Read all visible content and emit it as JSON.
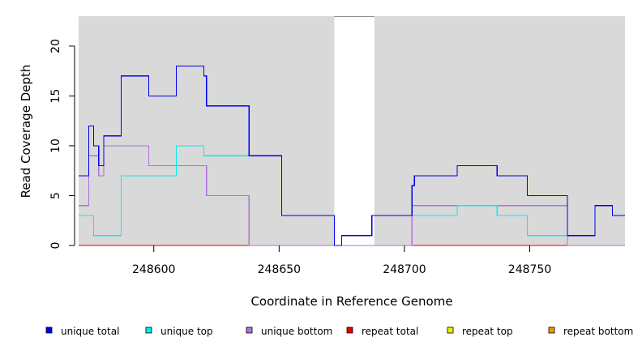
{
  "chart_data": {
    "type": "line",
    "step": true,
    "xlabel": "Coordinate in Reference Genome",
    "ylabel": "Read Coverage Depth",
    "xlim": [
      248570,
      248788
    ],
    "ylim": [
      0,
      23
    ],
    "x_ticks": [
      248600,
      248650,
      248700,
      248750
    ],
    "y_ticks": [
      0,
      5,
      10,
      15,
      20
    ],
    "background_color": "#d9d9d9",
    "gap_regions": [
      [
        248672,
        248688
      ]
    ],
    "series": [
      {
        "name": "unique total",
        "color": "#0000ee",
        "points": [
          [
            248570,
            7
          ],
          [
            248574,
            7
          ],
          [
            248574,
            12
          ],
          [
            248576,
            12
          ],
          [
            248576,
            10
          ],
          [
            248578,
            10
          ],
          [
            248578,
            8
          ],
          [
            248580,
            8
          ],
          [
            248580,
            11
          ],
          [
            248587,
            11
          ],
          [
            248587,
            17
          ],
          [
            248598,
            17
          ],
          [
            248598,
            15
          ],
          [
            248609,
            15
          ],
          [
            248609,
            18
          ],
          [
            248620,
            18
          ],
          [
            248620,
            17
          ],
          [
            248621,
            17
          ],
          [
            248621,
            14
          ],
          [
            248638,
            14
          ],
          [
            248638,
            9
          ],
          [
            248651,
            9
          ],
          [
            248651,
            3
          ],
          [
            248672,
            3
          ],
          [
            248672,
            0
          ],
          [
            248675,
            0
          ],
          [
            248675,
            1
          ],
          [
            248687,
            1
          ],
          [
            248687,
            3
          ],
          [
            248703,
            3
          ],
          [
            248703,
            6
          ],
          [
            248704,
            6
          ],
          [
            248704,
            7
          ],
          [
            248721,
            7
          ],
          [
            248721,
            8
          ],
          [
            248737,
            8
          ],
          [
            248737,
            7
          ],
          [
            248749,
            7
          ],
          [
            248749,
            5
          ],
          [
            248765,
            5
          ],
          [
            248765,
            1
          ],
          [
            248776,
            1
          ],
          [
            248776,
            4
          ],
          [
            248783,
            4
          ],
          [
            248783,
            3
          ],
          [
            248788,
            3
          ]
        ]
      },
      {
        "name": "unique top",
        "color": "#00eeee",
        "points": [
          [
            248570,
            3
          ],
          [
            248576,
            3
          ],
          [
            248576,
            1
          ],
          [
            248587,
            1
          ],
          [
            248587,
            7
          ],
          [
            248609,
            7
          ],
          [
            248609,
            10
          ],
          [
            248620,
            10
          ],
          [
            248620,
            9
          ],
          [
            248638,
            9
          ],
          [
            248651,
            9
          ],
          [
            248651,
            3
          ],
          [
            248672,
            3
          ],
          [
            248672,
            0
          ],
          [
            248675,
            0
          ],
          [
            248675,
            1
          ],
          [
            248687,
            1
          ],
          [
            248687,
            3
          ],
          [
            248703,
            3
          ],
          [
            248721,
            3
          ],
          [
            248721,
            4
          ],
          [
            248737,
            4
          ],
          [
            248737,
            3
          ],
          [
            248749,
            3
          ],
          [
            248749,
            1
          ],
          [
            248765,
            1
          ],
          [
            248776,
            1
          ],
          [
            248776,
            4
          ],
          [
            248783,
            4
          ],
          [
            248783,
            3
          ],
          [
            248788,
            3
          ]
        ]
      },
      {
        "name": "unique bottom",
        "color": "#b070e0",
        "points": [
          [
            248570,
            4
          ],
          [
            248574,
            4
          ],
          [
            248574,
            9
          ],
          [
            248578,
            9
          ],
          [
            248578,
            7
          ],
          [
            248580,
            7
          ],
          [
            248580,
            10
          ],
          [
            248598,
            10
          ],
          [
            248598,
            8
          ],
          [
            248621,
            8
          ],
          [
            248621,
            5
          ],
          [
            248638,
            5
          ],
          [
            248638,
            0
          ],
          [
            248703,
            0
          ],
          [
            248703,
            4
          ],
          [
            248765,
            4
          ],
          [
            248765,
            0
          ],
          [
            248788,
            0
          ]
        ]
      },
      {
        "name": "repeat total",
        "color": "#ee0000",
        "points": [
          [
            248570,
            0
          ],
          [
            248788,
            0
          ]
        ]
      },
      {
        "name": "repeat top",
        "color": "#eeee00",
        "points": [
          [
            248570,
            0
          ],
          [
            248788,
            0
          ]
        ]
      },
      {
        "name": "repeat bottom",
        "color": "#ee9a00",
        "points": [
          [
            248570,
            0
          ],
          [
            248788,
            0
          ]
        ]
      }
    ],
    "legend_position": "bottom"
  }
}
